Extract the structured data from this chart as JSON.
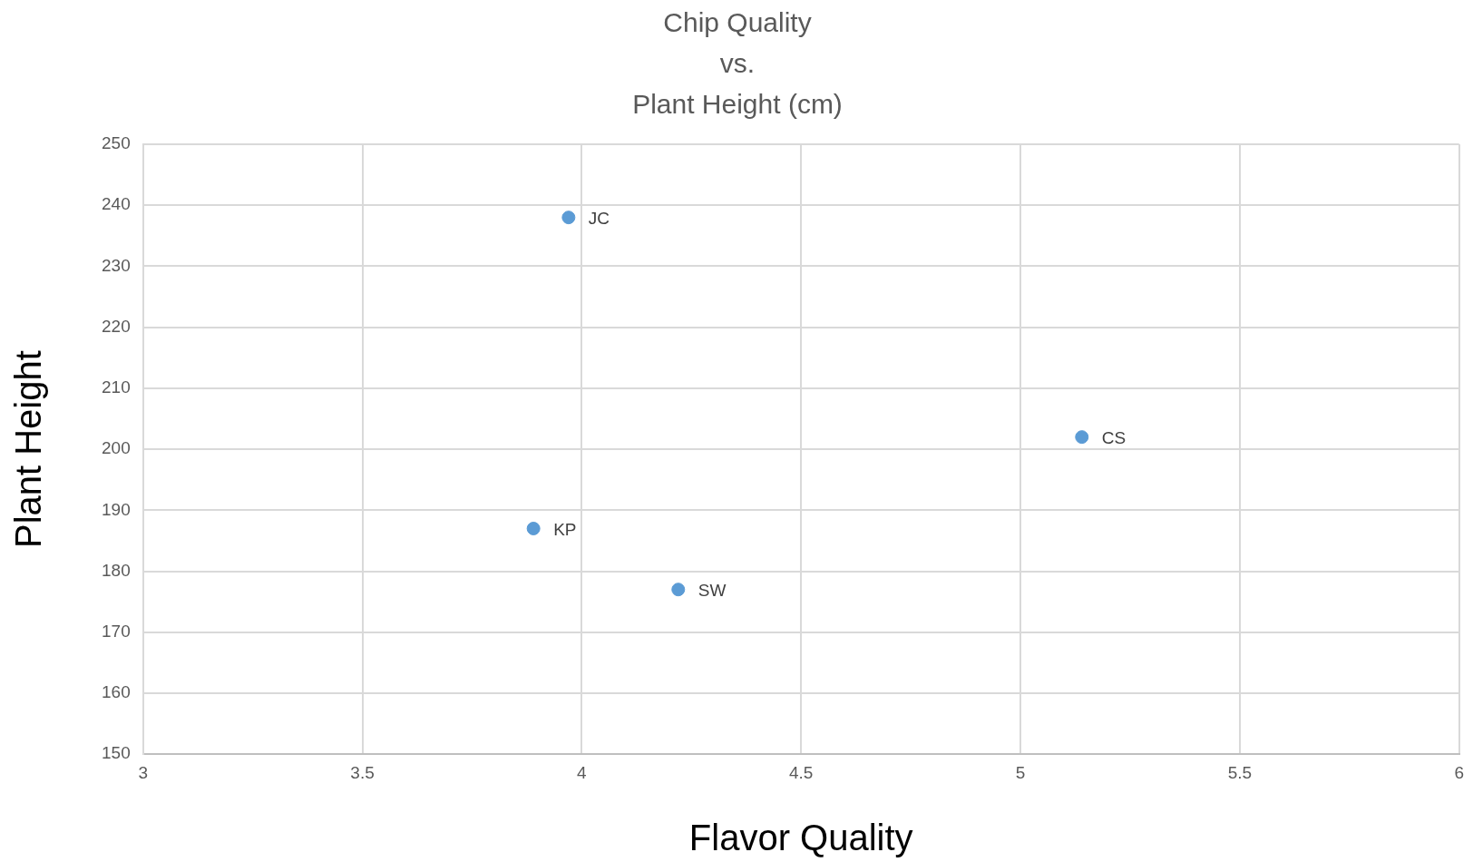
{
  "chart_data": {
    "type": "scatter",
    "title": "Chip Quality\nvs.\nPlant Height (cm)",
    "xlabel": "Flavor Quality",
    "ylabel": "Plant Height",
    "x": [
      3.97,
      5.14,
      3.89,
      4.22
    ],
    "series": [
      {
        "color": "#5b9bd5",
        "values": [
          238,
          202,
          187,
          177
        ]
      }
    ],
    "xlim": [
      3,
      6
    ],
    "xticks": [
      3,
      3.5,
      4,
      4.5,
      5,
      5.5,
      6
    ],
    "ylim": [
      150,
      250
    ],
    "yticks": [
      150,
      160,
      170,
      180,
      190,
      200,
      210,
      220,
      230,
      240,
      250
    ],
    "annotations": [
      {
        "text": "JC",
        "x": 3.97,
        "y": 238
      },
      {
        "text": "CS",
        "x": 5.14,
        "y": 202
      },
      {
        "text": "KP",
        "x": 3.89,
        "y": 187
      },
      {
        "text": "SW",
        "x": 4.22,
        "y": 177
      }
    ],
    "grid": true,
    "legend": false,
    "marker": "circle"
  }
}
